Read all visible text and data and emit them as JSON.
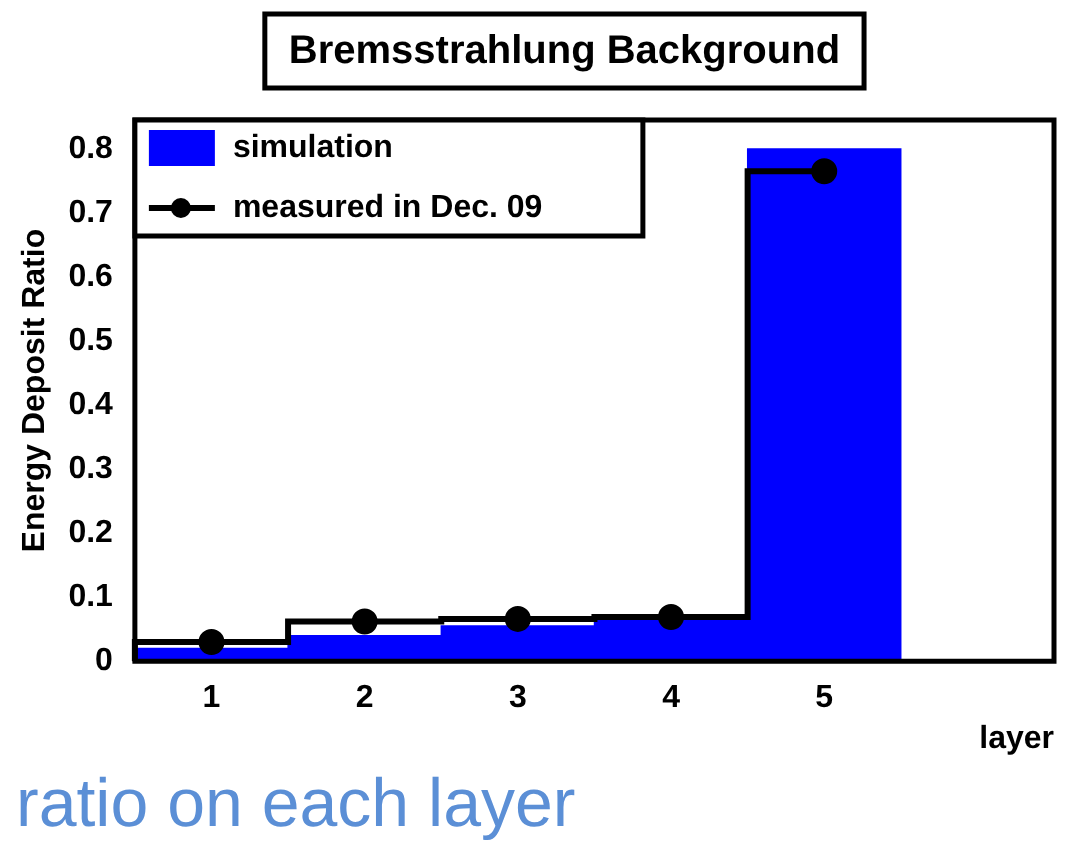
{
  "chart_data": {
    "type": "histogram",
    "title": "Bremsstrahlung Background",
    "xlabel": "layer",
    "ylabel": "Energy Deposit Ratio",
    "bins": [
      0.5,
      1.5,
      2.5,
      3.5,
      4.5,
      5.5,
      6.5
    ],
    "series": [
      {
        "name": "simulation",
        "color": "#0000ff",
        "values": [
          0.02,
          0.04,
          0.055,
          0.068,
          0.8,
          0
        ]
      },
      {
        "name": "measured in Dec. 09",
        "color": "#000000",
        "type": "step",
        "marker": "circle",
        "x": [
          1,
          2,
          3,
          4,
          5
        ],
        "values": [
          0.03,
          0.062,
          0.066,
          0.069,
          0.765
        ]
      }
    ],
    "xlim": [
      0.5,
      6.5
    ],
    "xticks": [
      1,
      2,
      3,
      4,
      5
    ],
    "ylim": [
      0,
      0.845
    ],
    "yticks": [
      0,
      0.1,
      0.2,
      0.3,
      0.4,
      0.5,
      0.6,
      0.7,
      0.8
    ],
    "grid": false,
    "legend": "top left",
    "annotations": [
      "ratio on each layer"
    ]
  }
}
